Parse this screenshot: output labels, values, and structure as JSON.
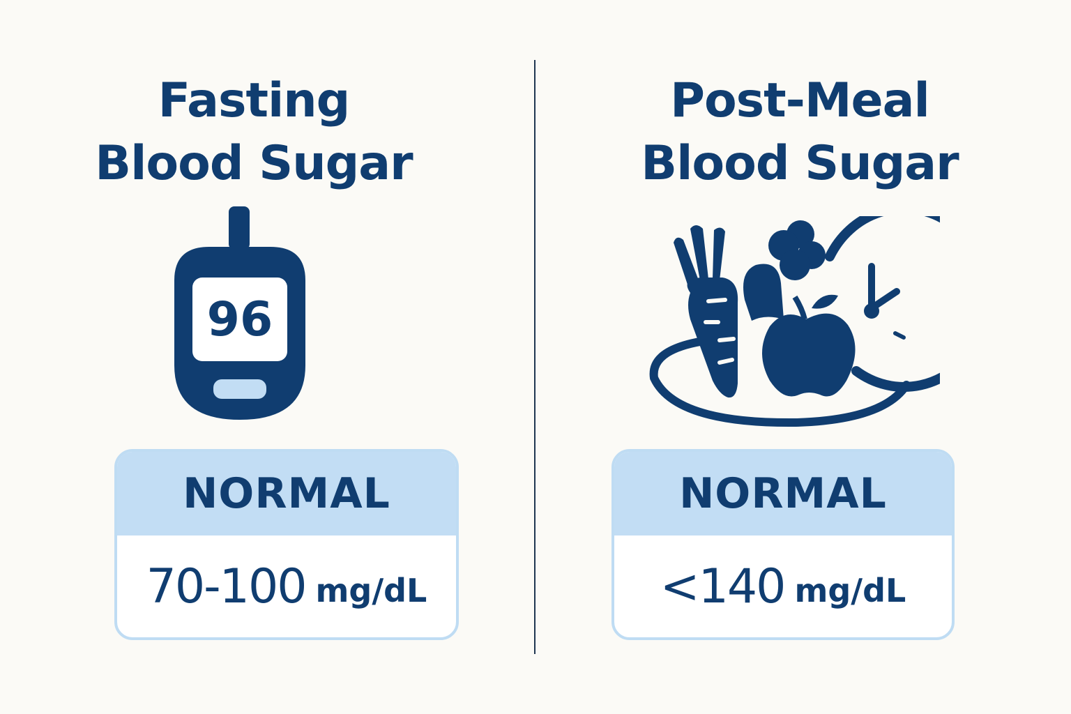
{
  "fasting": {
    "title_line1": "Fasting",
    "title_line2": "Blood Sugar",
    "icon": "glucose-meter-icon",
    "meter_reading": "96",
    "status": "NORMAL",
    "range_value": "70-100",
    "range_unit": "mg/dL"
  },
  "post_meal": {
    "title_line1": "Post-Meal",
    "title_line2": "Blood Sugar",
    "icon": "meal-with-clock-icon",
    "status": "NORMAL",
    "range_value": "<140",
    "range_unit": "mg/dL"
  },
  "colors": {
    "navy": "#103d70",
    "light_blue": "#c2ddf4",
    "background": "#fbfaf6"
  }
}
